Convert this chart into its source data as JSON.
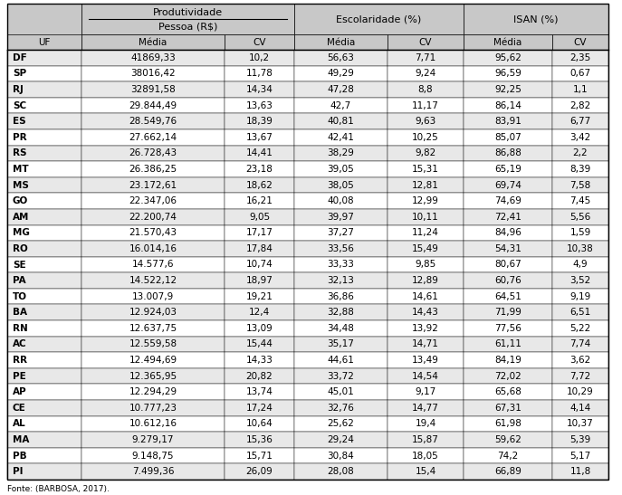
{
  "header_sub": [
    "UF",
    "Média",
    "CV",
    "Média",
    "CV",
    "Média",
    "CV"
  ],
  "rows": [
    [
      "DF",
      "41869,33",
      "10,2",
      "56,63",
      "7,71",
      "95,62",
      "2,35"
    ],
    [
      "SP",
      "38016,42",
      "11,78",
      "49,29",
      "9,24",
      "96,59",
      "0,67"
    ],
    [
      "RJ",
      "32891,58",
      "14,34",
      "47,28",
      "8,8",
      "92,25",
      "1,1"
    ],
    [
      "SC",
      "29.844,49",
      "13,63",
      "42,7",
      "11,17",
      "86,14",
      "2,82"
    ],
    [
      "ES",
      "28.549,76",
      "18,39",
      "40,81",
      "9,63",
      "83,91",
      "6,77"
    ],
    [
      "PR",
      "27.662,14",
      "13,67",
      "42,41",
      "10,25",
      "85,07",
      "3,42"
    ],
    [
      "RS",
      "26.728,43",
      "14,41",
      "38,29",
      "9,82",
      "86,88",
      "2,2"
    ],
    [
      "MT",
      "26.386,25",
      "23,18",
      "39,05",
      "15,31",
      "65,19",
      "8,39"
    ],
    [
      "MS",
      "23.172,61",
      "18,62",
      "38,05",
      "12,81",
      "69,74",
      "7,58"
    ],
    [
      "GO",
      "22.347,06",
      "16,21",
      "40,08",
      "12,99",
      "74,69",
      "7,45"
    ],
    [
      "AM",
      "22.200,74",
      "9,05",
      "39,97",
      "10,11",
      "72,41",
      "5,56"
    ],
    [
      "MG",
      "21.570,43",
      "17,17",
      "37,27",
      "11,24",
      "84,96",
      "1,59"
    ],
    [
      "RO",
      "16.014,16",
      "17,84",
      "33,56",
      "15,49",
      "54,31",
      "10,38"
    ],
    [
      "SE",
      "14.577,6",
      "10,74",
      "33,33",
      "9,85",
      "80,67",
      "4,9"
    ],
    [
      "PA",
      "14.522,12",
      "18,97",
      "32,13",
      "12,89",
      "60,76",
      "3,52"
    ],
    [
      "TO",
      "13.007,9",
      "19,21",
      "36,86",
      "14,61",
      "64,51",
      "9,19"
    ],
    [
      "BA",
      "12.924,03",
      "12,4",
      "32,88",
      "14,43",
      "71,99",
      "6,51"
    ],
    [
      "RN",
      "12.637,75",
      "13,09",
      "34,48",
      "13,92",
      "77,56",
      "5,22"
    ],
    [
      "AC",
      "12.559,58",
      "15,44",
      "35,17",
      "14,71",
      "61,11",
      "7,74"
    ],
    [
      "RR",
      "12.494,69",
      "14,33",
      "44,61",
      "13,49",
      "84,19",
      "3,62"
    ],
    [
      "PE",
      "12.365,95",
      "20,82",
      "33,72",
      "14,54",
      "72,02",
      "7,72"
    ],
    [
      "AP",
      "12.294,29",
      "13,74",
      "45,01",
      "9,17",
      "65,68",
      "10,29"
    ],
    [
      "CE",
      "10.777,23",
      "17,24",
      "32,76",
      "14,77",
      "67,31",
      "4,14"
    ],
    [
      "AL",
      "10.612,16",
      "10,64",
      "25,62",
      "19,4",
      "61,98",
      "10,37"
    ],
    [
      "MA",
      "9.279,17",
      "15,36",
      "29,24",
      "15,87",
      "59,62",
      "5,39"
    ],
    [
      "PB",
      "9.148,75",
      "15,71",
      "30,84",
      "18,05",
      "74,2",
      "5,17"
    ],
    [
      "PI",
      "7.499,36",
      "26,09",
      "28,08",
      "15,4",
      "66,89",
      "11,8"
    ]
  ],
  "footer": "Fonte: (BARBOSA, 2017).",
  "header_bg": "#c8c8c8",
  "row_bg_odd": "#e8e8e8",
  "row_bg_even": "#ffffff",
  "prod_header": "Produtividade",
  "prod_subheader": "Pessoa (R$)",
  "esc_header": "Escolaridade (%)",
  "isan_header": "ISAN (%)",
  "fontsize": 7.5,
  "header_fontsize": 8.0
}
